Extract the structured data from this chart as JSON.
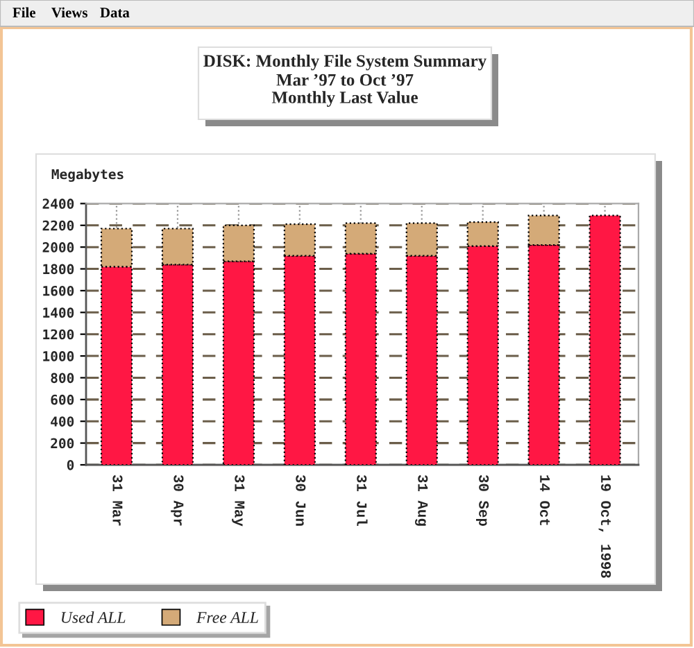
{
  "chart_data": {
    "type": "bar",
    "title": "DISK: Monthly File System Summary",
    "subtitle": "Mar ’97 to Oct ’97\nMonthly Last Value",
    "ylabel": "Megabytes",
    "categories": [
      "31 Mar",
      "30 Apr",
      "31 May",
      "30 Jun",
      "31 Jul",
      "31 Aug",
      "30 Sep",
      "14 Oct",
      "19 Oct, 1998"
    ],
    "series": [
      {
        "name": "Used ALL",
        "color": "#ff1744",
        "values": [
          1820,
          1840,
          1870,
          1920,
          1940,
          1920,
          2010,
          2020,
          2290
        ]
      },
      {
        "name": "Free ALL",
        "color": "#d4aa78",
        "values": [
          350,
          330,
          330,
          290,
          280,
          300,
          220,
          270,
          null
        ]
      }
    ],
    "stacked": true,
    "ylim": [
      0,
      2400
    ],
    "yticks": [
      0,
      200,
      400,
      600,
      800,
      1000,
      1200,
      1400,
      1600,
      1800,
      2000,
      2200,
      2400
    ],
    "grid": true,
    "legend": "bottom left",
    "annotations": [
      "File",
      "Views",
      "Data"
    ]
  }
}
